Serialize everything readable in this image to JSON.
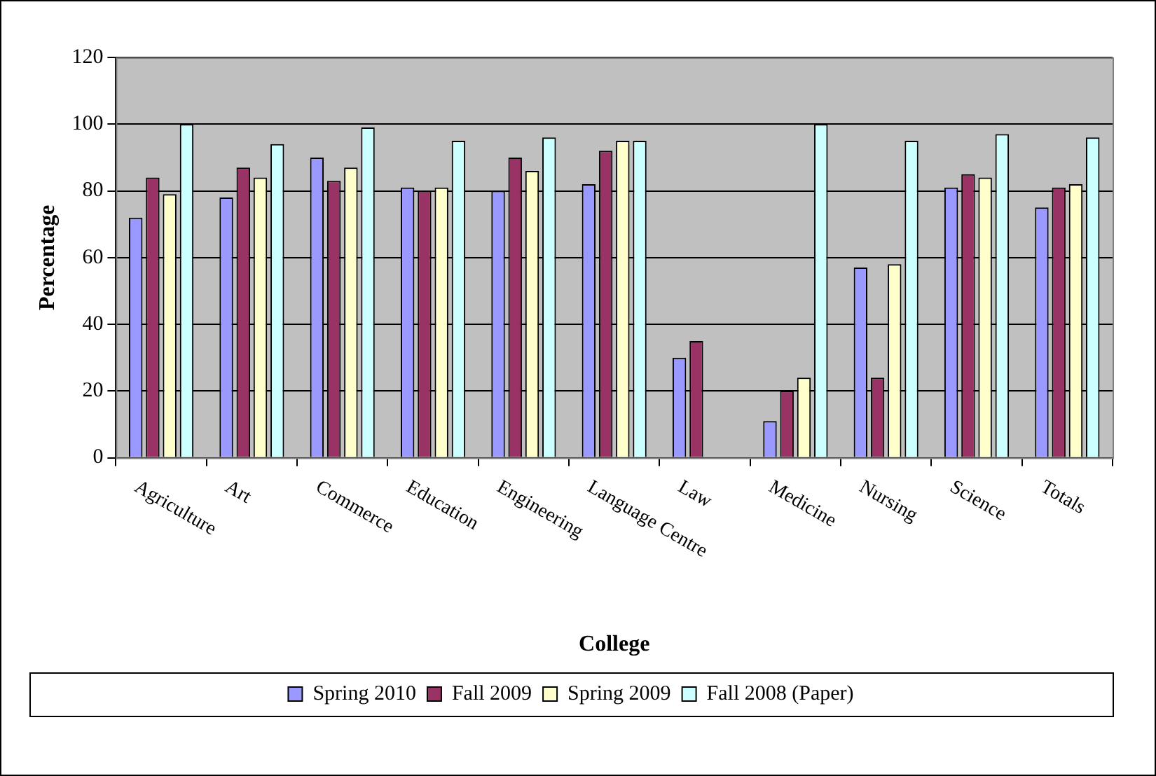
{
  "chart_data": {
    "type": "bar",
    "xlabel": "College",
    "ylabel": "Percentage",
    "categories": [
      "Agriculture",
      "Art",
      "Commerce",
      "Education",
      "Engineering",
      "Language Centre",
      "Law",
      "Medicine",
      "Nursing",
      "Science",
      "Totals"
    ],
    "series": [
      {
        "name": "Spring 2010",
        "color": "#9999ff",
        "values": [
          72,
          78,
          90,
          81,
          80,
          82,
          30,
          11,
          57,
          81,
          75
        ]
      },
      {
        "name": "Fall 2009",
        "color": "#993366",
        "values": [
          84,
          87,
          83,
          80,
          90,
          92,
          35,
          20,
          24,
          85,
          81
        ]
      },
      {
        "name": "Spring 2009",
        "color": "#ffffcc",
        "values": [
          79,
          84,
          87,
          81,
          86,
          95,
          null,
          24,
          58,
          84,
          82
        ]
      },
      {
        "name": "Fall 2008 (Paper)",
        "color": "#ccffff",
        "values": [
          100,
          94,
          99,
          95,
          96,
          95,
          null,
          100,
          95,
          97,
          96
        ]
      }
    ],
    "ylim": [
      0,
      120
    ],
    "yticks": [
      0,
      20,
      40,
      60,
      80,
      100,
      120
    ],
    "grid": "y",
    "legend": "bottom"
  }
}
